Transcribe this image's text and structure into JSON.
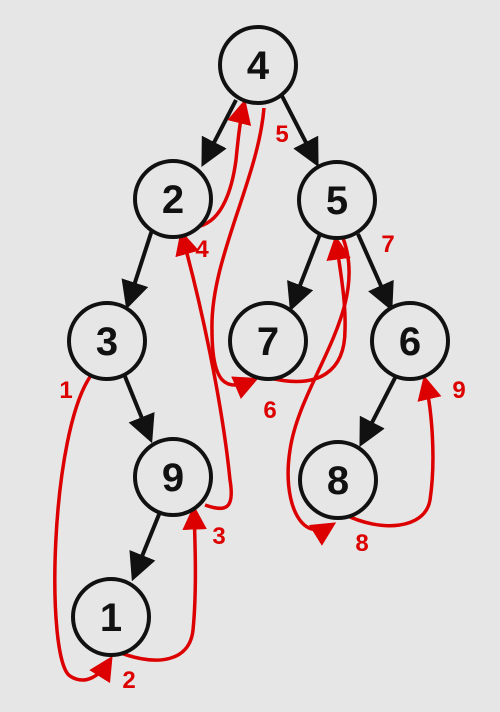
{
  "diagram": {
    "background": "#e6e6e6",
    "tree_edge_color": "#111111",
    "traversal_color": "#dd0000",
    "nodes": [
      {
        "id": "n4",
        "label": "4"
      },
      {
        "id": "n2",
        "label": "2"
      },
      {
        "id": "n5",
        "label": "5"
      },
      {
        "id": "n3",
        "label": "3"
      },
      {
        "id": "n7",
        "label": "7"
      },
      {
        "id": "n6",
        "label": "6"
      },
      {
        "id": "n9",
        "label": "9"
      },
      {
        "id": "n8",
        "label": "8"
      },
      {
        "id": "n1",
        "label": "1"
      }
    ],
    "tree_edges": [
      {
        "from": "4",
        "to": "2"
      },
      {
        "from": "4",
        "to": "5"
      },
      {
        "from": "2",
        "to": "3"
      },
      {
        "from": "3",
        "to": "9"
      },
      {
        "from": "9",
        "to": "1"
      },
      {
        "from": "5",
        "to": "7"
      },
      {
        "from": "5",
        "to": "6"
      },
      {
        "from": "6",
        "to": "8"
      }
    ],
    "traversal_steps": [
      {
        "step": "1",
        "from": "3",
        "to": "1"
      },
      {
        "step": "2",
        "from": "1",
        "to": "9"
      },
      {
        "step": "3",
        "from": "9",
        "to": "2"
      },
      {
        "step": "4",
        "from": "2",
        "to": "4"
      },
      {
        "step": "5",
        "from": "4",
        "to": "7"
      },
      {
        "step": "6",
        "from": "7",
        "to": "5"
      },
      {
        "step": "7",
        "from": "5",
        "to": "8"
      },
      {
        "step": "8",
        "from": "8",
        "to": "6"
      },
      {
        "step": "9",
        "from": "6",
        "to": "end"
      }
    ]
  }
}
